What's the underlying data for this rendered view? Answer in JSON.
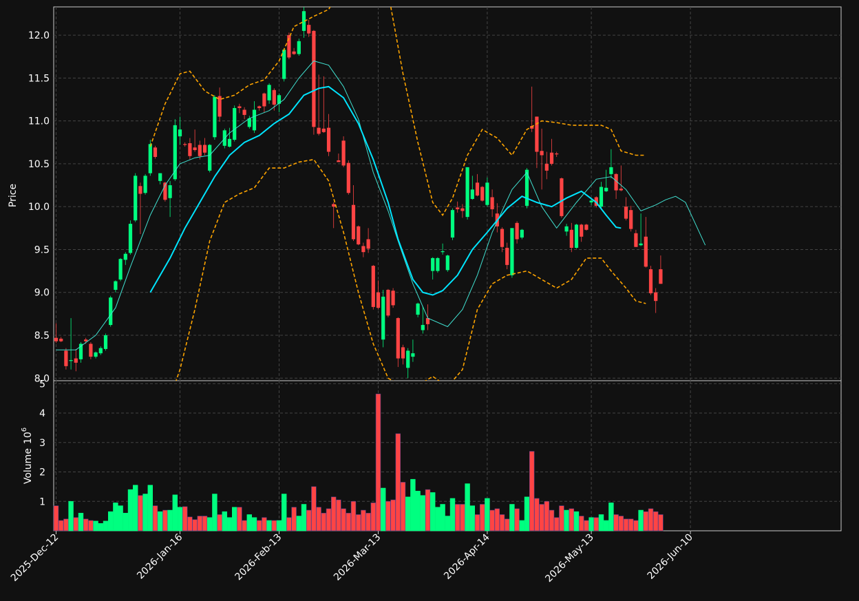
{
  "chart_data": {
    "type": "candlestick",
    "title": "",
    "price_axis": {
      "label": "Price",
      "ylim": [
        7.97,
        12.33
      ],
      "ticks": [
        "8.0",
        "8.5",
        "9.0",
        "9.5",
        "10.0",
        "10.5",
        "11.0",
        "11.5",
        "12.0"
      ]
    },
    "volume_axis": {
      "label": "Volume",
      "multiplier": "10",
      "exponent": "6",
      "ylim": [
        0,
        5.1
      ],
      "ticks": [
        "1",
        "2",
        "3",
        "4",
        "5"
      ]
    },
    "x_ticks": [
      {
        "label": "2025-Dec-12",
        "index": 0
      },
      {
        "label": "2026-Jan-16",
        "index": 25
      },
      {
        "label": "2026-Feb-13",
        "index": 45
      },
      {
        "label": "2026-Mar-13",
        "index": 65
      },
      {
        "label": "2026-Apr-14",
        "index": 87
      },
      {
        "label": "2026-May-13",
        "index": 108
      },
      {
        "label": "2026-Jun-10",
        "index": 128
      }
    ],
    "grid": true,
    "colors": {
      "up": "#00ff80",
      "down": "#ff4444",
      "ma_fast": "#40e0d0",
      "ma_slow": "#00e5ff",
      "bands": "#ffa500",
      "grid": "#444444",
      "background": "#111111"
    },
    "candles": [
      [
        8.47,
        8.64,
        8.41,
        8.43,
        0.85
      ],
      [
        8.46,
        8.48,
        8.42,
        8.43,
        0.35
      ],
      [
        8.32,
        8.35,
        8.1,
        8.14,
        0.4
      ],
      [
        8.2,
        8.7,
        8.1,
        8.21,
        1.0
      ],
      [
        8.23,
        8.34,
        8.08,
        8.18,
        0.45
      ],
      [
        8.22,
        8.42,
        8.18,
        8.4,
        0.6
      ],
      [
        8.45,
        8.47,
        8.4,
        8.43,
        0.4
      ],
      [
        8.4,
        8.42,
        8.22,
        8.25,
        0.35
      ],
      [
        8.25,
        8.31,
        8.23,
        8.3,
        0.33
      ],
      [
        8.29,
        8.37,
        8.27,
        8.35,
        0.25
      ],
      [
        8.34,
        8.52,
        8.32,
        8.5,
        0.33
      ],
      [
        8.62,
        8.96,
        8.6,
        8.94,
        0.65
      ],
      [
        9.03,
        9.14,
        9.0,
        9.13,
        0.95
      ],
      [
        9.15,
        9.4,
        9.13,
        9.39,
        0.85
      ],
      [
        9.38,
        9.47,
        9.32,
        9.45,
        0.6
      ],
      [
        9.46,
        9.84,
        9.44,
        9.8,
        1.4
      ],
      [
        9.84,
        10.39,
        9.82,
        10.36,
        1.55
      ],
      [
        10.24,
        10.28,
        9.68,
        10.15,
        1.2
      ],
      [
        10.16,
        10.38,
        10.14,
        10.36,
        1.25
      ],
      [
        10.39,
        10.78,
        10.36,
        10.73,
        1.55
      ],
      [
        10.69,
        10.71,
        10.56,
        10.58,
        0.85
      ],
      [
        10.3,
        10.39,
        10.26,
        10.39,
        0.65
      ],
      [
        10.28,
        10.29,
        10.06,
        10.08,
        0.7
      ],
      [
        10.1,
        10.3,
        9.88,
        10.25,
        0.7
      ],
      [
        10.32,
        11.02,
        10.3,
        10.95,
        1.22
      ],
      [
        10.82,
        11.05,
        10.72,
        10.9,
        0.8
      ],
      [
        10.73,
        10.75,
        10.7,
        10.72,
        0.82
      ],
      [
        10.74,
        10.8,
        10.55,
        10.59,
        0.47
      ],
      [
        10.69,
        10.9,
        10.64,
        10.66,
        0.38
      ],
      [
        10.72,
        10.77,
        10.55,
        10.59,
        0.5
      ],
      [
        10.72,
        10.8,
        10.6,
        10.63,
        0.5
      ],
      [
        10.42,
        10.73,
        10.4,
        10.72,
        0.45
      ],
      [
        10.81,
        11.3,
        10.78,
        11.28,
        1.25
      ],
      [
        11.29,
        11.39,
        10.99,
        11.05,
        0.55
      ],
      [
        10.71,
        10.91,
        10.68,
        10.89,
        0.65
      ],
      [
        10.7,
        10.92,
        10.69,
        10.79,
        0.45
      ],
      [
        10.78,
        11.18,
        10.76,
        11.15,
        0.8
      ],
      [
        11.17,
        11.2,
        11.09,
        11.15,
        0.8
      ],
      [
        11.13,
        11.16,
        11.02,
        11.07,
        0.35
      ],
      [
        10.93,
        11.06,
        10.91,
        11.03,
        0.55
      ],
      [
        10.89,
        11.23,
        10.86,
        11.13,
        0.45
      ],
      [
        11.17,
        11.18,
        11.12,
        11.15,
        0.35
      ],
      [
        11.32,
        11.33,
        11.1,
        11.17,
        0.45
      ],
      [
        11.24,
        11.44,
        11.2,
        11.42,
        0.35
      ],
      [
        11.36,
        11.38,
        11.12,
        11.19,
        0.35
      ],
      [
        11.2,
        11.32,
        11.1,
        11.3,
        0.35
      ],
      [
        11.49,
        11.85,
        11.46,
        11.83,
        1.25
      ],
      [
        12.0,
        12.03,
        11.72,
        11.74,
        0.45
      ],
      [
        11.81,
        11.85,
        11.77,
        11.78,
        0.8
      ],
      [
        11.78,
        11.96,
        11.76,
        11.93,
        0.5
      ],
      [
        12.05,
        12.33,
        11.97,
        12.28,
        0.9
      ],
      [
        12.12,
        12.18,
        11.98,
        12.02,
        0.7
      ],
      [
        12.05,
        12.06,
        10.84,
        10.93,
        1.5
      ],
      [
        10.92,
        11.54,
        10.83,
        10.85,
        0.8
      ],
      [
        10.91,
        11.52,
        10.86,
        10.87,
        0.6
      ],
      [
        10.92,
        11.08,
        10.59,
        10.64,
        0.75
      ],
      [
        10.03,
        10.05,
        9.75,
        10.0,
        1.15
      ],
      [
        10.54,
        10.62,
        10.52,
        10.52,
        1.05
      ],
      [
        10.77,
        10.82,
        10.46,
        10.48,
        0.75
      ],
      [
        10.51,
        10.54,
        10.14,
        10.16,
        0.6
      ],
      [
        10.02,
        10.25,
        9.6,
        9.62,
        1.0
      ],
      [
        9.77,
        9.78,
        9.55,
        9.56,
        0.55
      ],
      [
        9.54,
        9.58,
        9.41,
        9.47,
        0.7
      ],
      [
        9.62,
        9.75,
        9.46,
        9.51,
        0.6
      ],
      [
        9.31,
        9.32,
        8.8,
        8.83,
        0.95
      ],
      [
        9.0,
        9.14,
        8.8,
        8.82,
        4.65
      ],
      [
        8.45,
        9.03,
        8.36,
        8.95,
        1.45
      ],
      [
        9.03,
        9.04,
        8.71,
        8.73,
        1.0
      ],
      [
        9.02,
        9.05,
        8.82,
        8.85,
        1.05
      ],
      [
        8.7,
        8.71,
        8.13,
        8.23,
        3.3
      ],
      [
        8.36,
        8.39,
        8.16,
        8.23,
        1.65
      ],
      [
        8.12,
        8.35,
        8.0,
        8.32,
        1.15
      ],
      [
        8.25,
        8.45,
        8.19,
        8.29,
        1.75
      ],
      [
        8.74,
        8.88,
        8.71,
        8.87,
        1.35
      ],
      [
        8.56,
        8.84,
        8.52,
        8.62,
        1.2
      ],
      [
        8.7,
        8.86,
        8.56,
        8.63,
        1.4
      ],
      [
        9.25,
        9.41,
        9.15,
        9.4,
        1.3
      ],
      [
        9.25,
        9.41,
        9.23,
        9.4,
        0.8
      ],
      [
        9.47,
        9.57,
        9.44,
        9.48,
        0.9
      ],
      [
        9.26,
        9.44,
        9.24,
        9.43,
        0.5
      ],
      [
        9.64,
        9.98,
        9.61,
        9.96,
        1.1
      ],
      [
        9.99,
        10.06,
        9.93,
        9.97,
        0.9
      ],
      [
        9.98,
        10.03,
        9.87,
        9.95,
        0.9
      ],
      [
        9.88,
        10.46,
        9.85,
        10.46,
        1.6
      ],
      [
        10.09,
        10.36,
        10.08,
        10.2,
        0.85
      ],
      [
        10.28,
        10.38,
        10.12,
        10.13,
        0.55
      ],
      [
        10.23,
        10.24,
        10.06,
        10.07,
        0.9
      ],
      [
        10.02,
        10.34,
        10.0,
        10.28,
        1.1
      ],
      [
        10.11,
        10.2,
        9.88,
        9.97,
        0.7
      ],
      [
        9.92,
        10.04,
        9.7,
        9.77,
        0.75
      ],
      [
        9.74,
        9.76,
        9.47,
        9.53,
        0.55
      ],
      [
        9.52,
        9.58,
        9.27,
        9.32,
        0.4
      ],
      [
        9.2,
        9.75,
        9.17,
        9.75,
        0.9
      ],
      [
        9.81,
        9.83,
        9.57,
        9.62,
        0.75
      ],
      [
        9.64,
        9.74,
        9.62,
        9.73,
        0.35
      ],
      [
        10.01,
        10.45,
        9.98,
        10.43,
        1.15
      ],
      [
        10.94,
        11.4,
        10.87,
        10.91,
        2.7
      ],
      [
        11.05,
        11.05,
        10.45,
        10.64,
        1.1
      ],
      [
        10.65,
        10.91,
        10.2,
        10.6,
        0.9
      ],
      [
        10.5,
        10.64,
        10.32,
        10.42,
        1.0
      ],
      [
        10.63,
        10.79,
        10.48,
        10.5,
        0.7
      ],
      [
        10.62,
        10.64,
        10.58,
        10.61,
        0.45
      ],
      [
        10.33,
        10.34,
        9.87,
        9.89,
        0.85
      ],
      [
        9.71,
        9.8,
        9.66,
        9.77,
        0.7
      ],
      [
        9.73,
        9.81,
        9.47,
        9.52,
        0.75
      ],
      [
        9.52,
        9.8,
        9.51,
        9.79,
        0.65
      ],
      [
        9.79,
        9.8,
        9.59,
        9.65,
        0.5
      ],
      [
        9.79,
        9.8,
        9.72,
        9.73,
        0.35
      ],
      [
        10.05,
        10.09,
        10.02,
        10.07,
        0.45
      ],
      [
        10.11,
        10.12,
        9.99,
        10.01,
        0.45
      ],
      [
        10.0,
        10.29,
        9.98,
        10.23,
        0.55
      ],
      [
        10.18,
        10.43,
        10.17,
        10.22,
        0.35
      ],
      [
        10.38,
        10.67,
        10.33,
        10.46,
        0.95
      ],
      [
        10.38,
        10.39,
        10.09,
        10.19,
        0.55
      ],
      [
        10.21,
        10.48,
        10.18,
        10.19,
        0.5
      ],
      [
        10.0,
        10.11,
        9.84,
        9.86,
        0.4
      ],
      [
        9.96,
        10.01,
        9.71,
        9.74,
        0.4
      ],
      [
        9.69,
        9.73,
        9.53,
        9.53,
        0.35
      ],
      [
        9.55,
        9.92,
        9.54,
        9.57,
        0.7
      ],
      [
        9.65,
        9.88,
        9.29,
        9.3,
        0.65
      ],
      [
        9.27,
        9.31,
        8.97,
        8.99,
        0.75
      ],
      [
        9.0,
        9.05,
        8.76,
        8.9,
        0.65
      ],
      [
        9.27,
        9.43,
        9.1,
        9.1,
        0.55
      ]
    ],
    "ma_fast": [
      [
        0,
        8.33
      ],
      [
        4,
        8.33
      ],
      [
        8,
        8.5
      ],
      [
        12,
        8.82
      ],
      [
        15,
        9.3
      ],
      [
        19,
        9.9
      ],
      [
        22,
        10.25
      ],
      [
        25,
        10.5
      ],
      [
        28,
        10.57
      ],
      [
        31,
        10.6
      ],
      [
        35,
        10.86
      ],
      [
        39,
        11.03
      ],
      [
        43,
        11.12
      ],
      [
        46,
        11.25
      ],
      [
        49,
        11.5
      ],
      [
        52,
        11.7
      ],
      [
        55,
        11.65
      ],
      [
        58,
        11.4
      ],
      [
        61,
        11.02
      ],
      [
        64,
        10.4
      ],
      [
        67,
        9.95
      ],
      [
        69,
        9.6
      ],
      [
        72,
        9.1
      ],
      [
        75,
        8.7
      ],
      [
        79,
        8.6
      ],
      [
        82,
        8.8
      ],
      [
        85,
        9.2
      ],
      [
        88,
        9.7
      ],
      [
        92,
        10.2
      ],
      [
        95,
        10.4
      ],
      [
        98,
        10.0
      ],
      [
        101,
        9.75
      ],
      [
        105,
        10.05
      ],
      [
        109,
        10.32
      ],
      [
        112,
        10.35
      ],
      [
        115,
        10.2
      ],
      [
        118,
        9.95
      ],
      [
        121,
        10.02
      ],
      [
        123,
        10.08
      ],
      [
        125,
        10.12
      ],
      [
        127,
        10.05
      ],
      [
        129,
        9.8
      ],
      [
        131,
        9.55
      ]
    ],
    "ma_slow": [
      [
        19,
        9.0
      ],
      [
        23,
        9.4
      ],
      [
        26,
        9.75
      ],
      [
        29,
        10.05
      ],
      [
        32,
        10.35
      ],
      [
        35,
        10.6
      ],
      [
        38,
        10.75
      ],
      [
        41,
        10.83
      ],
      [
        44,
        10.97
      ],
      [
        47,
        11.08
      ],
      [
        50,
        11.3
      ],
      [
        53,
        11.38
      ],
      [
        55,
        11.4
      ],
      [
        58,
        11.27
      ],
      [
        61,
        10.97
      ],
      [
        64,
        10.55
      ],
      [
        67,
        10.05
      ],
      [
        69,
        9.62
      ],
      [
        72,
        9.15
      ],
      [
        74,
        9.0
      ],
      [
        76,
        8.97
      ],
      [
        78,
        9.02
      ],
      [
        81,
        9.2
      ],
      [
        84,
        9.5
      ],
      [
        87,
        9.7
      ],
      [
        91,
        9.98
      ],
      [
        94,
        10.12
      ],
      [
        97,
        10.05
      ],
      [
        100,
        10.0
      ],
      [
        103,
        10.1
      ],
      [
        106,
        10.18
      ],
      [
        109,
        10.05
      ],
      [
        111,
        9.9
      ],
      [
        113,
        9.76
      ],
      [
        114,
        9.75
      ]
    ],
    "band_upper": [
      [
        19,
        10.7
      ],
      [
        22,
        11.2
      ],
      [
        25,
        11.55
      ],
      [
        27,
        11.58
      ],
      [
        30,
        11.35
      ],
      [
        33,
        11.25
      ],
      [
        36,
        11.3
      ],
      [
        39,
        11.42
      ],
      [
        42,
        11.48
      ],
      [
        45,
        11.7
      ],
      [
        48,
        12.1
      ],
      [
        52,
        12.22
      ],
      [
        55,
        12.3
      ],
      [
        58,
        12.6
      ],
      [
        61,
        12.8
      ],
      [
        64,
        12.9
      ],
      [
        67,
        12.5
      ],
      [
        70,
        11.55
      ],
      [
        73,
        10.75
      ],
      [
        76,
        10.05
      ],
      [
        78,
        9.9
      ],
      [
        80,
        10.1
      ],
      [
        83,
        10.6
      ],
      [
        86,
        10.9
      ],
      [
        89,
        10.8
      ],
      [
        92,
        10.6
      ],
      [
        95,
        10.9
      ],
      [
        98,
        11.0
      ],
      [
        101,
        10.98
      ],
      [
        104,
        10.95
      ],
      [
        107,
        10.95
      ],
      [
        110,
        10.95
      ],
      [
        112,
        10.9
      ],
      [
        114,
        10.65
      ],
      [
        117,
        10.6
      ],
      [
        119,
        10.6
      ]
    ],
    "band_lower": [
      [
        19,
        7.1
      ],
      [
        22,
        7.6
      ],
      [
        25,
        8.1
      ],
      [
        28,
        8.8
      ],
      [
        31,
        9.6
      ],
      [
        34,
        10.05
      ],
      [
        37,
        10.15
      ],
      [
        40,
        10.22
      ],
      [
        43,
        10.45
      ],
      [
        46,
        10.45
      ],
      [
        49,
        10.52
      ],
      [
        52,
        10.55
      ],
      [
        55,
        10.3
      ],
      [
        58,
        9.7
      ],
      [
        61,
        9.0
      ],
      [
        64,
        8.4
      ],
      [
        67,
        8.0
      ],
      [
        70,
        7.9
      ],
      [
        74,
        7.95
      ],
      [
        76,
        8.02
      ],
      [
        79,
        7.9
      ],
      [
        82,
        8.1
      ],
      [
        85,
        8.8
      ],
      [
        88,
        9.1
      ],
      [
        91,
        9.2
      ],
      [
        95,
        9.25
      ],
      [
        98,
        9.15
      ],
      [
        101,
        9.05
      ],
      [
        104,
        9.15
      ],
      [
        107,
        9.4
      ],
      [
        110,
        9.4
      ],
      [
        112,
        9.25
      ],
      [
        115,
        9.05
      ],
      [
        117,
        8.9
      ],
      [
        119,
        8.87
      ]
    ]
  }
}
